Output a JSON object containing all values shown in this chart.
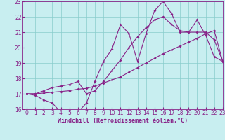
{
  "xlabel": "Windchill (Refroidissement éolien,°C)",
  "x": [
    0,
    1,
    2,
    3,
    4,
    5,
    6,
    7,
    8,
    9,
    10,
    11,
    12,
    13,
    14,
    15,
    16,
    17,
    18,
    19,
    20,
    21,
    22,
    23
  ],
  "line1": [
    17.0,
    16.9,
    16.6,
    16.4,
    15.8,
    15.8,
    15.8,
    16.4,
    17.8,
    19.1,
    19.9,
    21.5,
    20.9,
    19.1,
    20.9,
    22.4,
    23.0,
    22.2,
    21.0,
    21.0,
    21.8,
    20.8,
    19.4,
    19.1
  ],
  "line2": [
    17.0,
    17.0,
    17.05,
    17.1,
    17.15,
    17.2,
    17.3,
    17.35,
    17.5,
    17.7,
    17.9,
    18.1,
    18.4,
    18.7,
    19.0,
    19.3,
    19.6,
    19.85,
    20.1,
    20.35,
    20.6,
    20.9,
    21.1,
    19.1
  ],
  "line3": [
    17.0,
    17.0,
    17.2,
    17.4,
    17.5,
    17.6,
    17.8,
    17.0,
    17.2,
    17.8,
    18.5,
    19.2,
    20.0,
    20.7,
    21.3,
    21.8,
    22.0,
    21.5,
    21.1,
    21.0,
    21.0,
    21.0,
    20.5,
    19.1
  ],
  "line_color": "#882288",
  "bg_color": "#C8EEF0",
  "grid_color": "#88CCCC",
  "ylim": [
    16,
    23
  ],
  "xlim": [
    -0.5,
    23
  ],
  "yticks": [
    16,
    17,
    18,
    19,
    20,
    21,
    22,
    23
  ],
  "xticks": [
    0,
    1,
    2,
    3,
    4,
    5,
    6,
    7,
    8,
    9,
    10,
    11,
    12,
    13,
    14,
    15,
    16,
    17,
    18,
    19,
    20,
    21,
    22,
    23
  ],
  "tick_color": "#882288",
  "label_fontsize": 6,
  "tick_fontsize": 5.5
}
